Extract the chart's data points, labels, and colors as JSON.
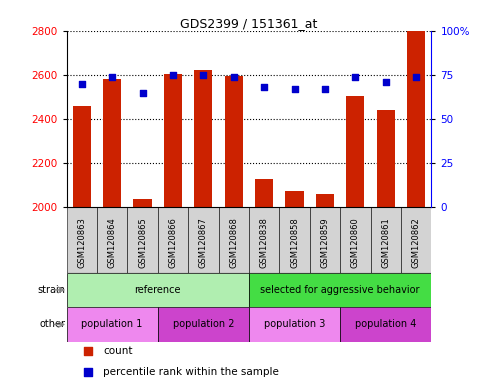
{
  "title": "GDS2399 / 151361_at",
  "samples": [
    "GSM120863",
    "GSM120864",
    "GSM120865",
    "GSM120866",
    "GSM120867",
    "GSM120868",
    "GSM120838",
    "GSM120858",
    "GSM120859",
    "GSM120860",
    "GSM120861",
    "GSM120862"
  ],
  "counts": [
    2460,
    2580,
    2040,
    2605,
    2622,
    2595,
    2130,
    2075,
    2060,
    2505,
    2440,
    2800
  ],
  "percentiles": [
    70,
    74,
    65,
    75,
    75,
    74,
    68,
    67,
    67,
    74,
    71,
    74
  ],
  "ylim_left": [
    2000,
    2800
  ],
  "ylim_right": [
    0,
    100
  ],
  "yticks_left": [
    2000,
    2200,
    2400,
    2600,
    2800
  ],
  "yticks_right": [
    0,
    25,
    50,
    75,
    100
  ],
  "bar_color": "#cc2200",
  "dot_color": "#0000cc",
  "background_color": "#ffffff",
  "xticklabel_bg": "#d3d3d3",
  "strain_groups": [
    {
      "label": "reference",
      "start": 0,
      "end": 6,
      "color": "#aaeea a"
    },
    {
      "label": "selected for aggressive behavior",
      "start": 6,
      "end": 12,
      "color": "#44dd44"
    }
  ],
  "other_groups": [
    {
      "label": "population 1",
      "start": 0,
      "end": 3,
      "color": "#ee88ee"
    },
    {
      "label": "population 2",
      "start": 3,
      "end": 6,
      "color": "#cc44cc"
    },
    {
      "label": "population 3",
      "start": 6,
      "end": 9,
      "color": "#ee88ee"
    },
    {
      "label": "population 4",
      "start": 9,
      "end": 12,
      "color": "#cc44cc"
    }
  ],
  "legend_items": [
    {
      "label": "count",
      "color": "#cc2200"
    },
    {
      "label": "percentile rank within the sample",
      "color": "#0000cc"
    }
  ],
  "strain_label": "strain",
  "other_label": "other"
}
